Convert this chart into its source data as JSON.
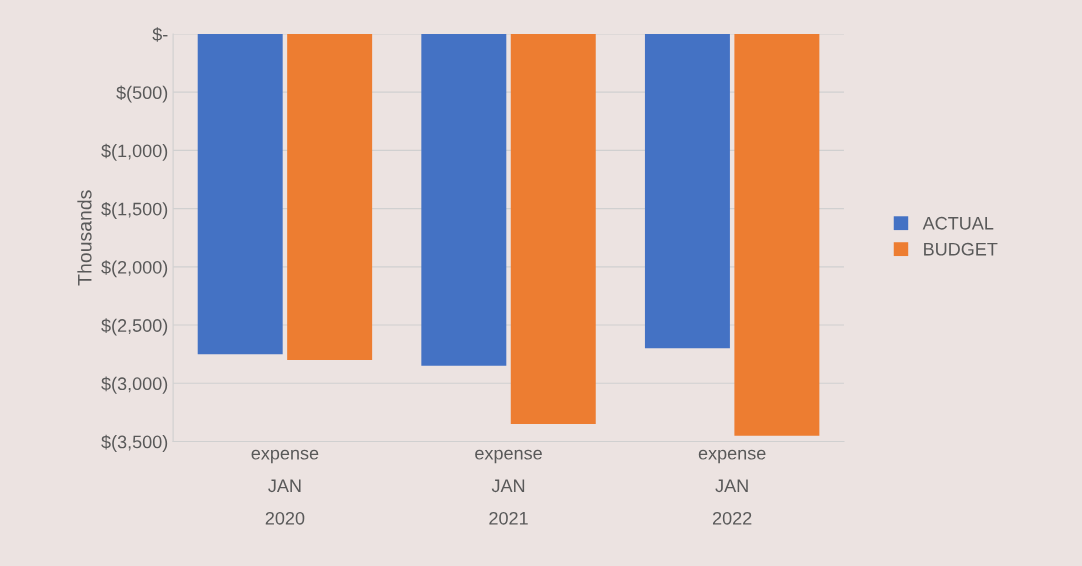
{
  "chart_data": {
    "type": "bar",
    "ylabel": "Thousands",
    "categories": [
      "expense\nJAN\n2020",
      "expense\nJAN\n2021",
      "expense\nJAN\n2022"
    ],
    "series": [
      {
        "name": "ACTUAL",
        "color": "#4472c4",
        "values": [
          -2750,
          -2850,
          -2700
        ]
      },
      {
        "name": "BUDGET",
        "color": "#ed7d31",
        "values": [
          -2800,
          -3350,
          -3450
        ]
      }
    ],
    "ylim": [
      -3500,
      0
    ],
    "yticks": [
      {
        "value": 0,
        "label": "$-"
      },
      {
        "value": -500,
        "label": "$(500)"
      },
      {
        "value": -1000,
        "label": "$(1,000)"
      },
      {
        "value": -1500,
        "label": "$(1,500)"
      },
      {
        "value": -2000,
        "label": "$(2,000)"
      },
      {
        "value": -2500,
        "label": "$(2,500)"
      },
      {
        "value": -3000,
        "label": "$(3,000)"
      },
      {
        "value": -3500,
        "label": "$(3,500)"
      }
    ],
    "grid": "y",
    "legend": "right"
  }
}
